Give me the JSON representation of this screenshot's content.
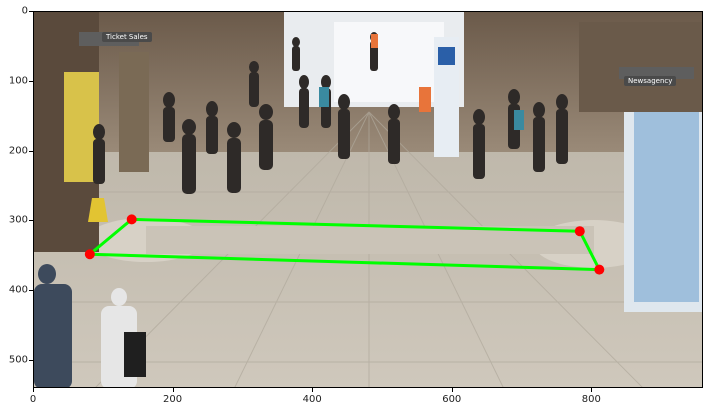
{
  "scene": {
    "signs": {
      "ticket_sales": "Ticket Sales",
      "newsagency": "Newsagency"
    }
  },
  "chart_data": {
    "type": "image_with_polygon_overlay",
    "xlim": [
      0,
      960
    ],
    "ylim": [
      540,
      0
    ],
    "x_ticks": [
      0,
      200,
      400,
      600,
      800
    ],
    "y_ticks": [
      0,
      100,
      200,
      300,
      400,
      500
    ],
    "polygon": {
      "color": "#00ff00",
      "vertex_color": "#ff0000",
      "points": [
        {
          "x": 140,
          "y": 297
        },
        {
          "x": 782,
          "y": 314
        },
        {
          "x": 810,
          "y": 369
        },
        {
          "x": 80,
          "y": 347
        }
      ]
    }
  }
}
